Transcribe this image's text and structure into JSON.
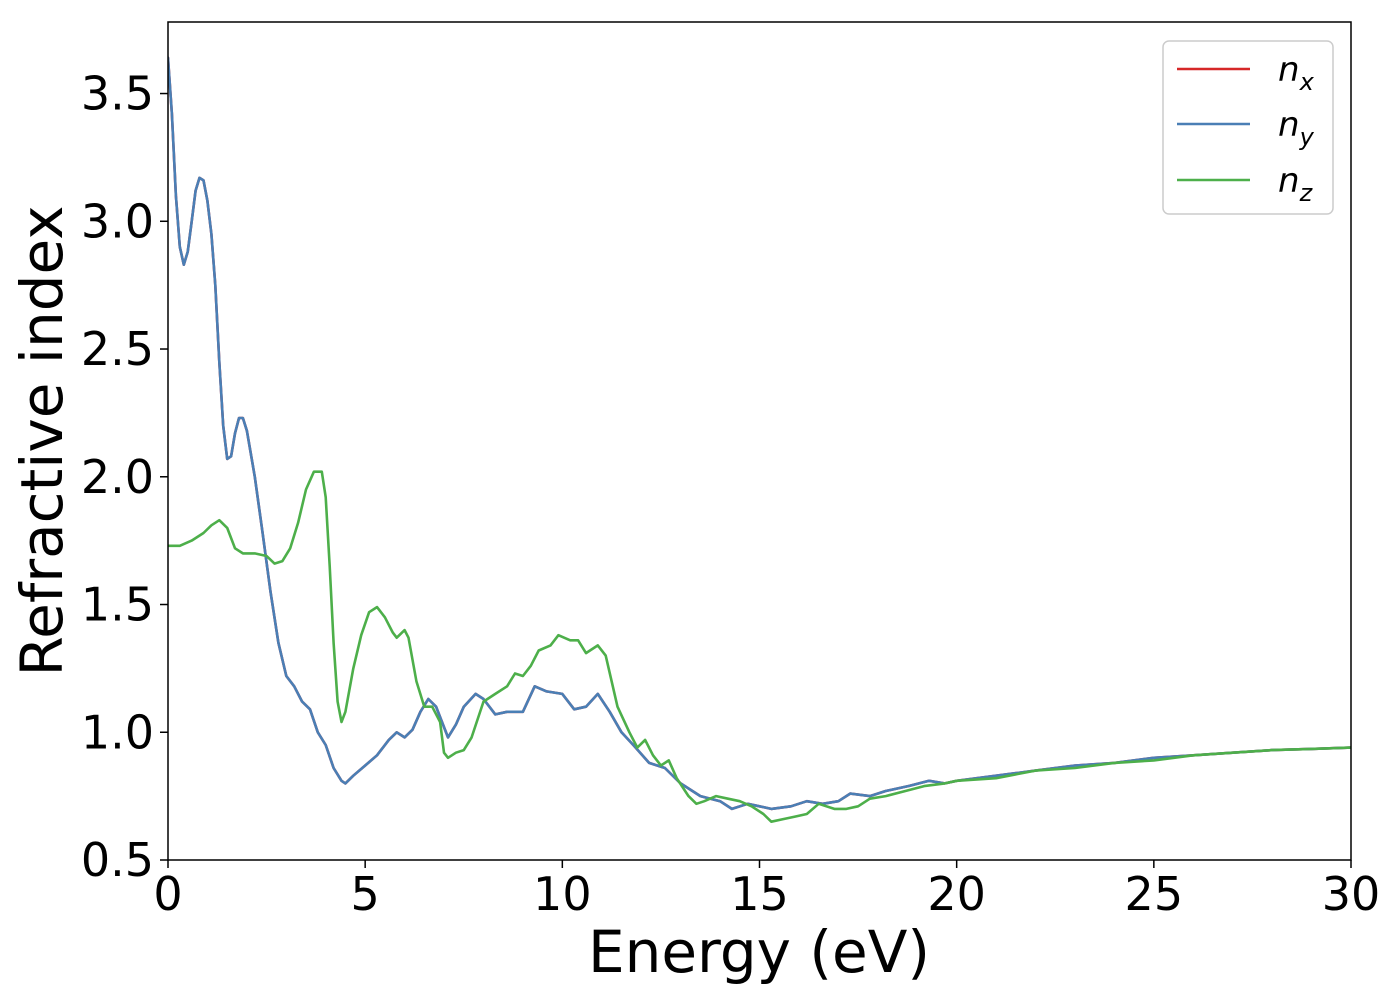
{
  "chart_data": {
    "type": "line",
    "xlabel": "Energy (eV)",
    "ylabel": "Refractive index",
    "xlim": [
      0,
      30
    ],
    "ylim": [
      0.5,
      3.78
    ],
    "xticks": [
      "0",
      "5",
      "10",
      "15",
      "20",
      "25",
      "30"
    ],
    "yticks": [
      "0.5",
      "1.0",
      "1.5",
      "2.0",
      "2.5",
      "3.0",
      "3.5"
    ],
    "grid": false,
    "legend_position": "top-right",
    "series": [
      {
        "name": "n",
        "subscript": "x",
        "color": "#d62728",
        "points": [
          [
            0,
            3.64
          ],
          [
            0.1,
            3.42
          ],
          [
            0.2,
            3.1
          ],
          [
            0.3,
            2.9
          ],
          [
            0.4,
            2.83
          ],
          [
            0.5,
            2.88
          ],
          [
            0.6,
            3.0
          ],
          [
            0.7,
            3.12
          ],
          [
            0.8,
            3.17
          ],
          [
            0.9,
            3.16
          ],
          [
            1.0,
            3.08
          ],
          [
            1.1,
            2.95
          ],
          [
            1.2,
            2.75
          ],
          [
            1.3,
            2.45
          ],
          [
            1.4,
            2.2
          ],
          [
            1.5,
            2.07
          ],
          [
            1.6,
            2.08
          ],
          [
            1.7,
            2.17
          ],
          [
            1.8,
            2.23
          ],
          [
            1.9,
            2.23
          ],
          [
            2.0,
            2.18
          ],
          [
            2.2,
            2.0
          ],
          [
            2.4,
            1.78
          ],
          [
            2.6,
            1.55
          ],
          [
            2.8,
            1.35
          ],
          [
            3.0,
            1.22
          ],
          [
            3.2,
            1.18
          ],
          [
            3.4,
            1.12
          ],
          [
            3.6,
            1.09
          ],
          [
            3.8,
            1.0
          ],
          [
            4.0,
            0.95
          ],
          [
            4.2,
            0.86
          ],
          [
            4.4,
            0.81
          ],
          [
            4.5,
            0.8
          ],
          [
            4.7,
            0.83
          ],
          [
            5.0,
            0.87
          ],
          [
            5.3,
            0.91
          ],
          [
            5.6,
            0.97
          ],
          [
            5.8,
            1.0
          ],
          [
            6.0,
            0.98
          ],
          [
            6.2,
            1.01
          ],
          [
            6.4,
            1.08
          ],
          [
            6.6,
            1.13
          ],
          [
            6.8,
            1.1
          ],
          [
            7.0,
            1.02
          ],
          [
            7.1,
            0.98
          ],
          [
            7.3,
            1.03
          ],
          [
            7.5,
            1.1
          ],
          [
            7.8,
            1.15
          ],
          [
            8.0,
            1.13
          ],
          [
            8.3,
            1.07
          ],
          [
            8.6,
            1.08
          ],
          [
            9.0,
            1.08
          ],
          [
            9.3,
            1.18
          ],
          [
            9.6,
            1.16
          ],
          [
            10.0,
            1.15
          ],
          [
            10.3,
            1.09
          ],
          [
            10.6,
            1.1
          ],
          [
            10.9,
            1.15
          ],
          [
            11.2,
            1.08
          ],
          [
            11.5,
            1.0
          ],
          [
            11.8,
            0.95
          ],
          [
            12.2,
            0.88
          ],
          [
            12.6,
            0.86
          ],
          [
            13.0,
            0.8
          ],
          [
            13.5,
            0.75
          ],
          [
            14.0,
            0.73
          ],
          [
            14.3,
            0.7
          ],
          [
            14.7,
            0.72
          ],
          [
            15.0,
            0.71
          ],
          [
            15.3,
            0.7
          ],
          [
            15.8,
            0.71
          ],
          [
            16.2,
            0.73
          ],
          [
            16.6,
            0.72
          ],
          [
            17.0,
            0.73
          ],
          [
            17.3,
            0.76
          ],
          [
            17.8,
            0.75
          ],
          [
            18.2,
            0.77
          ],
          [
            18.8,
            0.79
          ],
          [
            19.3,
            0.81
          ],
          [
            19.7,
            0.8
          ],
          [
            20.0,
            0.81
          ],
          [
            21.0,
            0.83
          ],
          [
            22.0,
            0.85
          ],
          [
            23.0,
            0.87
          ],
          [
            24.0,
            0.88
          ],
          [
            25.0,
            0.9
          ],
          [
            26.0,
            0.91
          ],
          [
            27.0,
            0.92
          ],
          [
            28.0,
            0.93
          ],
          [
            29.0,
            0.935
          ],
          [
            30.0,
            0.94
          ]
        ]
      },
      {
        "name": "n",
        "subscript": "y",
        "color": "#4a7fb5",
        "points": [
          [
            0,
            3.64
          ],
          [
            0.1,
            3.42
          ],
          [
            0.2,
            3.1
          ],
          [
            0.3,
            2.9
          ],
          [
            0.4,
            2.83
          ],
          [
            0.5,
            2.88
          ],
          [
            0.6,
            3.0
          ],
          [
            0.7,
            3.12
          ],
          [
            0.8,
            3.17
          ],
          [
            0.9,
            3.16
          ],
          [
            1.0,
            3.08
          ],
          [
            1.1,
            2.95
          ],
          [
            1.2,
            2.75
          ],
          [
            1.3,
            2.45
          ],
          [
            1.4,
            2.2
          ],
          [
            1.5,
            2.07
          ],
          [
            1.6,
            2.08
          ],
          [
            1.7,
            2.17
          ],
          [
            1.8,
            2.23
          ],
          [
            1.9,
            2.23
          ],
          [
            2.0,
            2.18
          ],
          [
            2.2,
            2.0
          ],
          [
            2.4,
            1.78
          ],
          [
            2.6,
            1.55
          ],
          [
            2.8,
            1.35
          ],
          [
            3.0,
            1.22
          ],
          [
            3.2,
            1.18
          ],
          [
            3.4,
            1.12
          ],
          [
            3.6,
            1.09
          ],
          [
            3.8,
            1.0
          ],
          [
            4.0,
            0.95
          ],
          [
            4.2,
            0.86
          ],
          [
            4.4,
            0.81
          ],
          [
            4.5,
            0.8
          ],
          [
            4.7,
            0.83
          ],
          [
            5.0,
            0.87
          ],
          [
            5.3,
            0.91
          ],
          [
            5.6,
            0.97
          ],
          [
            5.8,
            1.0
          ],
          [
            6.0,
            0.98
          ],
          [
            6.2,
            1.01
          ],
          [
            6.4,
            1.08
          ],
          [
            6.6,
            1.13
          ],
          [
            6.8,
            1.1
          ],
          [
            7.0,
            1.02
          ],
          [
            7.1,
            0.98
          ],
          [
            7.3,
            1.03
          ],
          [
            7.5,
            1.1
          ],
          [
            7.8,
            1.15
          ],
          [
            8.0,
            1.13
          ],
          [
            8.3,
            1.07
          ],
          [
            8.6,
            1.08
          ],
          [
            9.0,
            1.08
          ],
          [
            9.3,
            1.18
          ],
          [
            9.6,
            1.16
          ],
          [
            10.0,
            1.15
          ],
          [
            10.3,
            1.09
          ],
          [
            10.6,
            1.1
          ],
          [
            10.9,
            1.15
          ],
          [
            11.2,
            1.08
          ],
          [
            11.5,
            1.0
          ],
          [
            11.8,
            0.95
          ],
          [
            12.2,
            0.88
          ],
          [
            12.6,
            0.86
          ],
          [
            13.0,
            0.8
          ],
          [
            13.5,
            0.75
          ],
          [
            14.0,
            0.73
          ],
          [
            14.3,
            0.7
          ],
          [
            14.7,
            0.72
          ],
          [
            15.0,
            0.71
          ],
          [
            15.3,
            0.7
          ],
          [
            15.8,
            0.71
          ],
          [
            16.2,
            0.73
          ],
          [
            16.6,
            0.72
          ],
          [
            17.0,
            0.73
          ],
          [
            17.3,
            0.76
          ],
          [
            17.8,
            0.75
          ],
          [
            18.2,
            0.77
          ],
          [
            18.8,
            0.79
          ],
          [
            19.3,
            0.81
          ],
          [
            19.7,
            0.8
          ],
          [
            20.0,
            0.81
          ],
          [
            21.0,
            0.83
          ],
          [
            22.0,
            0.85
          ],
          [
            23.0,
            0.87
          ],
          [
            24.0,
            0.88
          ],
          [
            25.0,
            0.9
          ],
          [
            26.0,
            0.91
          ],
          [
            27.0,
            0.92
          ],
          [
            28.0,
            0.93
          ],
          [
            29.0,
            0.935
          ],
          [
            30.0,
            0.94
          ]
        ]
      },
      {
        "name": "n",
        "subscript": "z",
        "color": "#4daf4a",
        "points": [
          [
            0,
            1.73
          ],
          [
            0.3,
            1.73
          ],
          [
            0.6,
            1.75
          ],
          [
            0.9,
            1.78
          ],
          [
            1.1,
            1.81
          ],
          [
            1.3,
            1.83
          ],
          [
            1.5,
            1.8
          ],
          [
            1.7,
            1.72
          ],
          [
            1.9,
            1.7
          ],
          [
            2.2,
            1.7
          ],
          [
            2.5,
            1.69
          ],
          [
            2.7,
            1.66
          ],
          [
            2.9,
            1.67
          ],
          [
            3.1,
            1.72
          ],
          [
            3.3,
            1.82
          ],
          [
            3.5,
            1.95
          ],
          [
            3.7,
            2.02
          ],
          [
            3.9,
            2.02
          ],
          [
            4.0,
            1.92
          ],
          [
            4.1,
            1.65
          ],
          [
            4.2,
            1.35
          ],
          [
            4.3,
            1.12
          ],
          [
            4.4,
            1.04
          ],
          [
            4.5,
            1.08
          ],
          [
            4.7,
            1.25
          ],
          [
            4.9,
            1.38
          ],
          [
            5.1,
            1.47
          ],
          [
            5.3,
            1.49
          ],
          [
            5.5,
            1.45
          ],
          [
            5.7,
            1.39
          ],
          [
            5.8,
            1.37
          ],
          [
            6.0,
            1.4
          ],
          [
            6.1,
            1.37
          ],
          [
            6.3,
            1.2
          ],
          [
            6.5,
            1.1
          ],
          [
            6.7,
            1.1
          ],
          [
            6.9,
            1.04
          ],
          [
            7.0,
            0.92
          ],
          [
            7.1,
            0.9
          ],
          [
            7.3,
            0.92
          ],
          [
            7.5,
            0.93
          ],
          [
            7.7,
            0.98
          ],
          [
            8.0,
            1.12
          ],
          [
            8.3,
            1.15
          ],
          [
            8.6,
            1.18
          ],
          [
            8.8,
            1.23
          ],
          [
            9.0,
            1.22
          ],
          [
            9.2,
            1.26
          ],
          [
            9.4,
            1.32
          ],
          [
            9.7,
            1.34
          ],
          [
            9.9,
            1.38
          ],
          [
            10.2,
            1.36
          ],
          [
            10.4,
            1.36
          ],
          [
            10.6,
            1.31
          ],
          [
            10.9,
            1.34
          ],
          [
            11.1,
            1.3
          ],
          [
            11.4,
            1.1
          ],
          [
            11.7,
            1.0
          ],
          [
            11.9,
            0.94
          ],
          [
            12.1,
            0.97
          ],
          [
            12.3,
            0.91
          ],
          [
            12.5,
            0.87
          ],
          [
            12.7,
            0.89
          ],
          [
            12.9,
            0.82
          ],
          [
            13.2,
            0.75
          ],
          [
            13.4,
            0.72
          ],
          [
            13.6,
            0.73
          ],
          [
            13.9,
            0.75
          ],
          [
            14.2,
            0.74
          ],
          [
            14.5,
            0.73
          ],
          [
            14.8,
            0.71
          ],
          [
            15.1,
            0.68
          ],
          [
            15.3,
            0.65
          ],
          [
            15.6,
            0.66
          ],
          [
            15.9,
            0.67
          ],
          [
            16.2,
            0.68
          ],
          [
            16.5,
            0.72
          ],
          [
            16.9,
            0.7
          ],
          [
            17.2,
            0.7
          ],
          [
            17.5,
            0.71
          ],
          [
            17.8,
            0.74
          ],
          [
            18.2,
            0.75
          ],
          [
            18.7,
            0.77
          ],
          [
            19.2,
            0.79
          ],
          [
            19.7,
            0.8
          ],
          [
            20.0,
            0.81
          ],
          [
            21.0,
            0.82
          ],
          [
            22.0,
            0.85
          ],
          [
            23.0,
            0.86
          ],
          [
            24.0,
            0.88
          ],
          [
            25.0,
            0.89
          ],
          [
            26.0,
            0.91
          ],
          [
            27.0,
            0.92
          ],
          [
            28.0,
            0.93
          ],
          [
            29.0,
            0.935
          ],
          [
            30.0,
            0.94
          ]
        ]
      }
    ]
  }
}
